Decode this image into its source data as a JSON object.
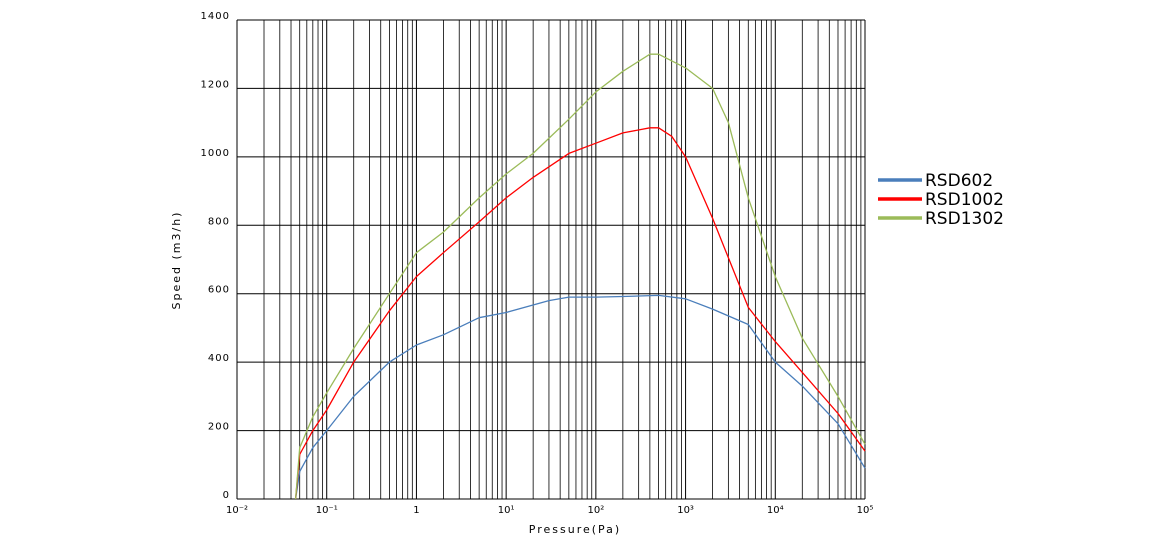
{
  "chart_data": {
    "type": "line",
    "x_label": "Pressure(Pa)",
    "y_label": "Speed (m3/h)",
    "xlog": true,
    "grid": true,
    "xlim": [
      0.01,
      100000
    ],
    "ylim": [
      0,
      1400
    ],
    "xticks": [
      {
        "value": 0.01,
        "label": "10⁻²"
      },
      {
        "value": 0.1,
        "label": "10⁻¹"
      },
      1,
      {
        "value": 10,
        "label": "10¹"
      },
      {
        "value": 100,
        "label": "10²"
      },
      {
        "value": 1000,
        "label": "10³"
      },
      {
        "value": 10000,
        "label": "10⁴"
      },
      {
        "value": 100000,
        "label": "10⁵"
      }
    ],
    "xminorticks": [
      0.02,
      0.03,
      0.04,
      0.05,
      0.06,
      0.07,
      0.08,
      0.09,
      0.2,
      0.3,
      0.4,
      0.5,
      0.6,
      0.7,
      0.8,
      0.9,
      2,
      3,
      4,
      5,
      6,
      7,
      8,
      9,
      20,
      30,
      40,
      50,
      60,
      70,
      80,
      90,
      200,
      300,
      400,
      500,
      600,
      700,
      800,
      900,
      2000,
      3000,
      4000,
      5000,
      6000,
      7000,
      8000,
      9000,
      20000,
      30000,
      40000,
      50000,
      60000,
      70000,
      80000,
      90000
    ],
    "yticks": [
      0,
      200,
      400,
      600,
      800,
      1000,
      1200,
      1400
    ],
    "legend": "right",
    "series": [
      {
        "name": "RSD602",
        "color": "#4a7ebb",
        "x": [
          0.045,
          0.05,
          0.07,
          0.1,
          0.2,
          0.5,
          1,
          2,
          5,
          10,
          30,
          50,
          100,
          200,
          500,
          1000,
          2000,
          5000,
          10000,
          20000,
          50000,
          100000
        ],
        "values": [
          0,
          80,
          150,
          200,
          300,
          400,
          450,
          480,
          530,
          545,
          580,
          590,
          590,
          592,
          595,
          585,
          555,
          510,
          400,
          330,
          220,
          90
        ]
      },
      {
        "name": "RSD1002",
        "color": "#ff0000",
        "x": [
          0.045,
          0.05,
          0.07,
          0.1,
          0.2,
          0.5,
          1,
          2,
          5,
          10,
          20,
          50,
          100,
          200,
          400,
          500,
          700,
          1000,
          2000,
          5000,
          10000,
          20000,
          50000,
          100000
        ],
        "values": [
          0,
          130,
          200,
          260,
          400,
          550,
          650,
          720,
          810,
          880,
          940,
          1010,
          1040,
          1070,
          1085,
          1085,
          1060,
          1000,
          820,
          560,
          460,
          370,
          250,
          140
        ]
      },
      {
        "name": "RSD1302",
        "color": "#9bbb59",
        "x": [
          0.045,
          0.05,
          0.07,
          0.1,
          0.2,
          0.5,
          1,
          2,
          5,
          10,
          20,
          50,
          100,
          200,
          400,
          500,
          1000,
          2000,
          3000,
          5000,
          10000,
          20000,
          50000,
          100000
        ],
        "values": [
          0,
          150,
          240,
          310,
          440,
          600,
          720,
          780,
          880,
          950,
          1010,
          1110,
          1190,
          1250,
          1300,
          1300,
          1260,
          1200,
          1100,
          880,
          650,
          470,
          300,
          160
        ]
      }
    ]
  }
}
